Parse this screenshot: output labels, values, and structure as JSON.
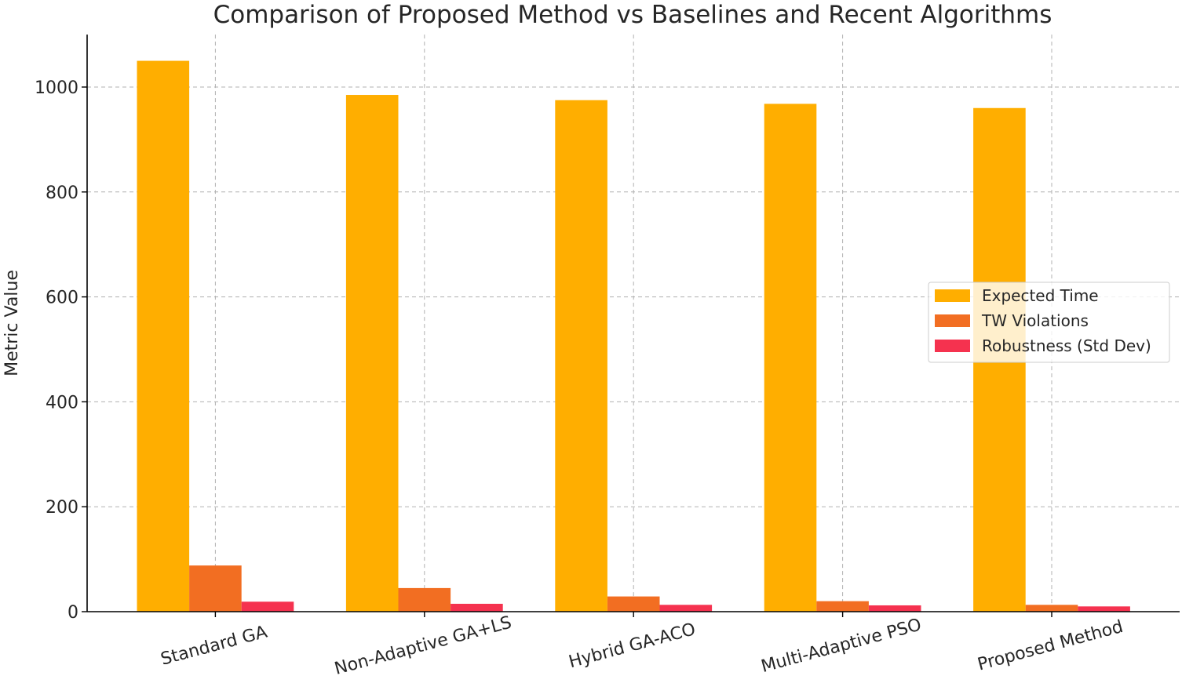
{
  "chart_data": {
    "type": "bar",
    "title": "Comparison of Proposed Method vs Baselines and Recent Algorithms",
    "xlabel": "",
    "ylabel": "Metric Value",
    "ylim": [
      0,
      1100
    ],
    "yticks": [
      0,
      200,
      400,
      600,
      800,
      1000
    ],
    "grid": true,
    "legend_position": "center-right",
    "categories": [
      "Standard GA",
      "Non-Adaptive GA+LS",
      "Hybrid GA-ACO",
      "Multi-Adaptive PSO",
      "Proposed Method"
    ],
    "series": [
      {
        "name": "Expected Time",
        "color": "#ffae00",
        "values": [
          1050,
          985,
          975,
          968,
          960
        ]
      },
      {
        "name": "TW Violations",
        "color": "#f26e22",
        "values": [
          88,
          45,
          29,
          20,
          13
        ]
      },
      {
        "name": "Robustness (Std Dev)",
        "color": "#f5324f",
        "values": [
          19,
          15,
          13,
          12,
          10
        ]
      }
    ]
  }
}
